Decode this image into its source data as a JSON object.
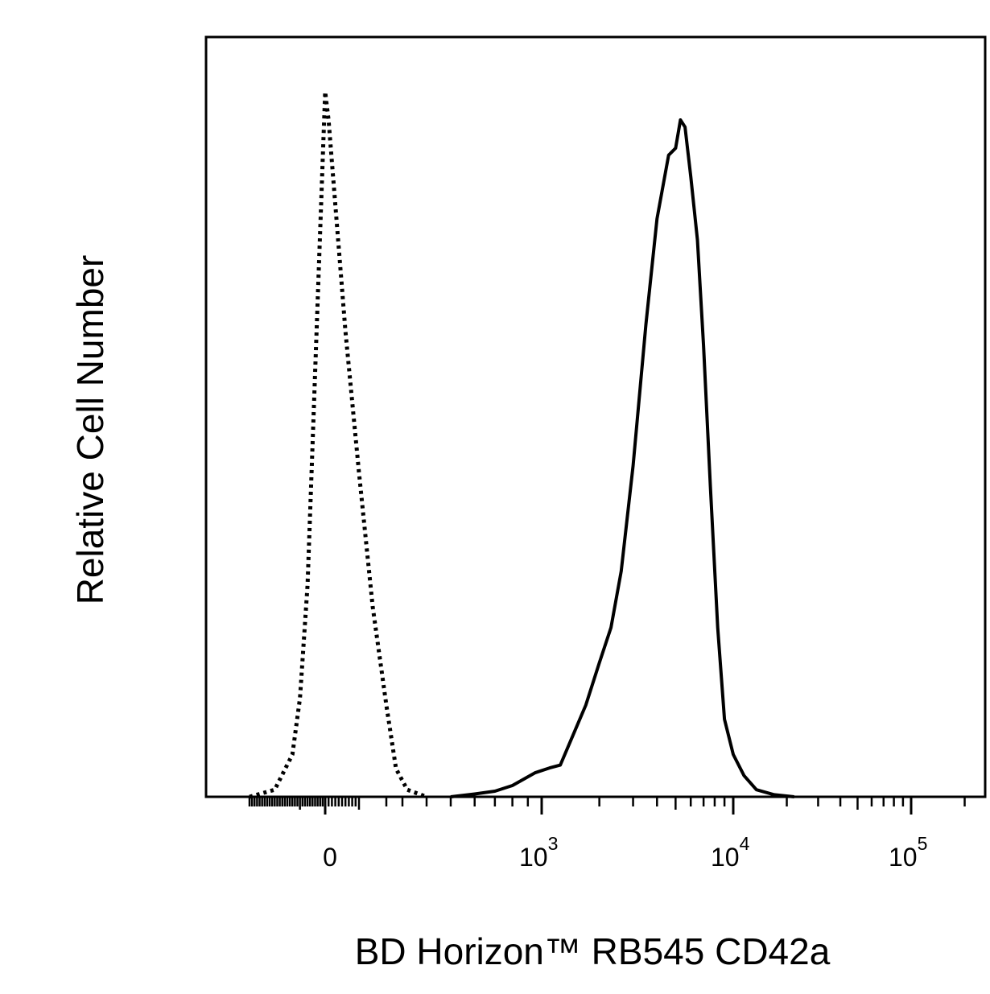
{
  "chart_data": {
    "type": "line",
    "title": "",
    "xlabel": "BD Horizon™ RB545 CD42a",
    "ylabel": "Relative Cell Number",
    "x_scale": "biexponential (log above ~10^2, linear around 0)",
    "x_tick_labels": [
      {
        "base": "0",
        "exp": ""
      },
      {
        "base": "10",
        "exp": "3"
      },
      {
        "base": "10",
        "exp": "4"
      },
      {
        "base": "10",
        "exp": "5"
      }
    ],
    "y_range": [
      0,
      100
    ],
    "grid": false,
    "legend": "none",
    "series": [
      {
        "style": "dotted",
        "color": "#000000",
        "points": [
          [
            -300,
            0
          ],
          [
            -200,
            1
          ],
          [
            -130,
            6
          ],
          [
            -100,
            14
          ],
          [
            -70,
            30
          ],
          [
            -45,
            55
          ],
          [
            -20,
            80
          ],
          [
            -5,
            95
          ],
          [
            0,
            100
          ],
          [
            10,
            96
          ],
          [
            30,
            84
          ],
          [
            60,
            66
          ],
          [
            100,
            46
          ],
          [
            150,
            27
          ],
          [
            200,
            13
          ],
          [
            260,
            4
          ],
          [
            320,
            1
          ],
          [
            400,
            0
          ]
        ]
      },
      {
        "style": "solid",
        "color": "#000000",
        "points": [
          [
            500,
            0
          ],
          [
            600,
            0.4
          ],
          [
            700,
            0.8
          ],
          [
            800,
            1.6
          ],
          [
            950,
            3.4
          ],
          [
            1100,
            4.1
          ],
          [
            1250,
            4.5
          ],
          [
            1450,
            8.6
          ],
          [
            1700,
            13
          ],
          [
            2000,
            19
          ],
          [
            2300,
            24
          ],
          [
            2600,
            32
          ],
          [
            3000,
            47
          ],
          [
            3500,
            67
          ],
          [
            4000,
            82
          ],
          [
            4600,
            91
          ],
          [
            5000,
            92
          ],
          [
            5300,
            96
          ],
          [
            5600,
            95
          ],
          [
            6000,
            88
          ],
          [
            6500,
            79
          ],
          [
            7000,
            64
          ],
          [
            7600,
            44
          ],
          [
            8300,
            24
          ],
          [
            9000,
            11
          ],
          [
            10000,
            6
          ],
          [
            11500,
            3
          ],
          [
            13500,
            1
          ],
          [
            17000,
            0.3
          ],
          [
            22000,
            0
          ]
        ]
      }
    ]
  }
}
